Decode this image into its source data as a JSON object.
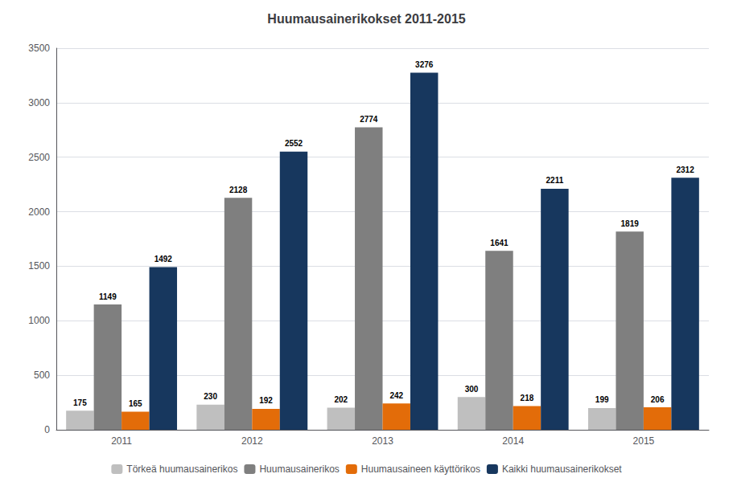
{
  "chart_data": {
    "type": "bar",
    "title": "Huumausainerikokset 2011-2015",
    "categories": [
      "2011",
      "2012",
      "2013",
      "2014",
      "2015"
    ],
    "series": [
      {
        "name": "Törkeä huumausainerikos",
        "color": "#bfbfbf",
        "values": [
          175,
          230,
          202,
          300,
          199
        ]
      },
      {
        "name": "Huumausainerikos",
        "color": "#7f7f7f",
        "values": [
          1149,
          2128,
          2774,
          1641,
          1819
        ]
      },
      {
        "name": "Huumausaineen käyttörikos",
        "color": "#e36c09",
        "values": [
          165,
          192,
          242,
          218,
          206
        ]
      },
      {
        "name": "Kaikki huumausainerikokset",
        "color": "#17375e",
        "values": [
          1492,
          2552,
          3276,
          2211,
          2312
        ]
      }
    ],
    "ylim": [
      0,
      3500
    ],
    "yticks": [
      0,
      500,
      1000,
      1500,
      2000,
      2500,
      3000,
      3500
    ],
    "grid": true,
    "legend": "bottom",
    "data_labels": true
  }
}
